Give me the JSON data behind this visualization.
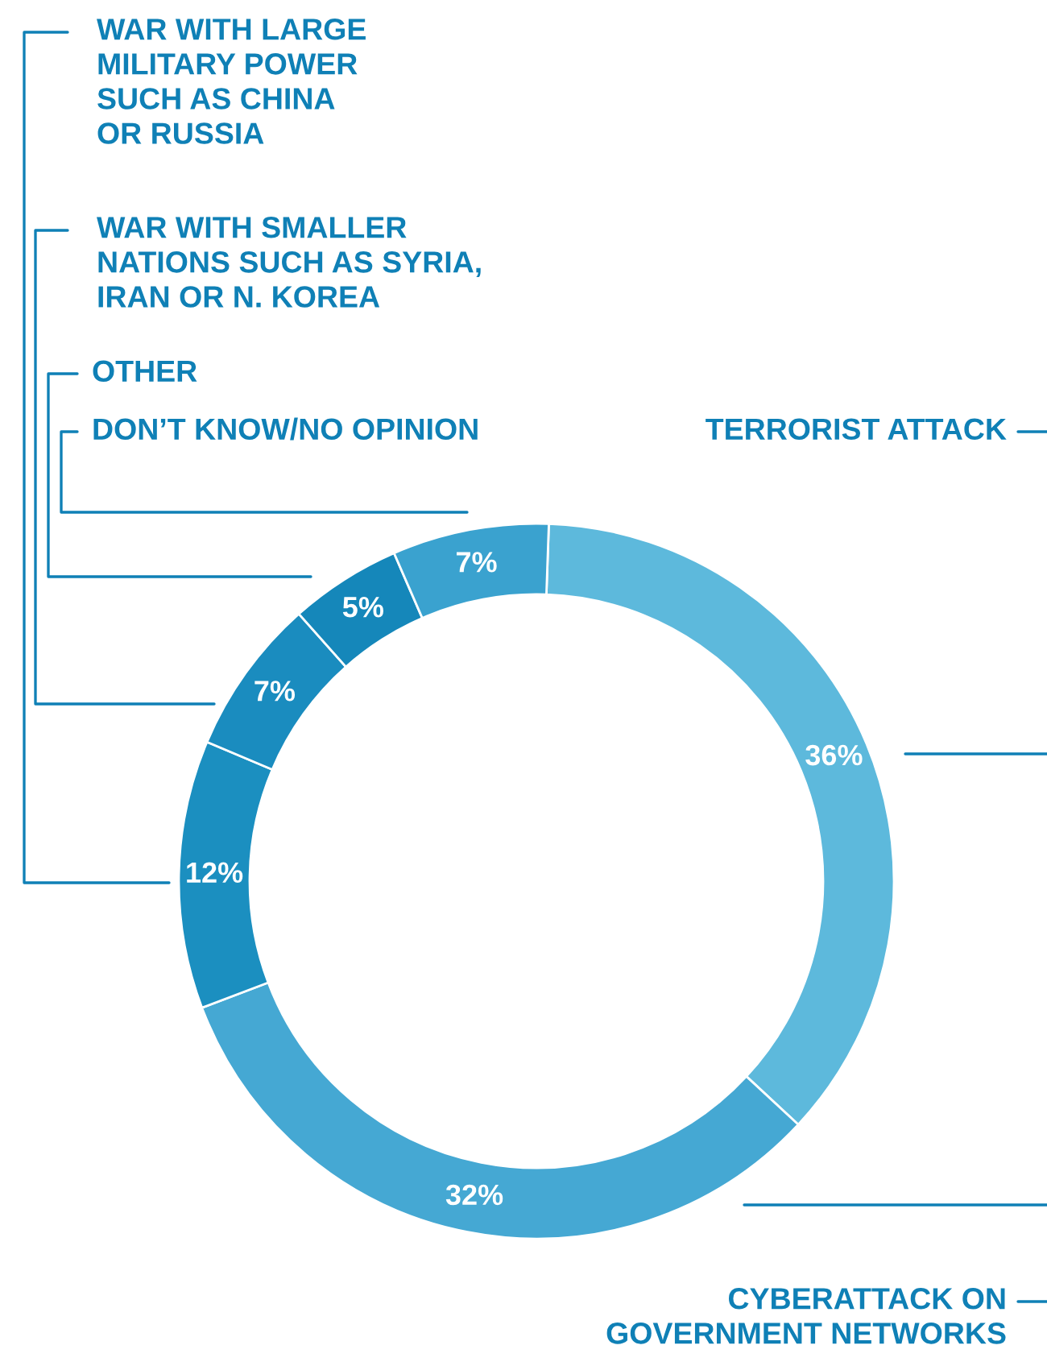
{
  "chart_data": {
    "type": "donut",
    "categories": [
      "TERRORIST ATTACK",
      "CYBERATTACK ON\nGOVERNMENT NETWORKS",
      "WAR WITH LARGE\nMILITARY POWER\nSUCH AS CHINA\nOR RUSSIA",
      "WAR WITH SMALLER\nNATIONS SUCH AS SYRIA,\nIRAN OR N. KOREA",
      "OTHER",
      "DON’T KNOW/NO OPINION"
    ],
    "values": [
      36,
      32,
      12,
      7,
      5,
      7
    ],
    "value_labels": [
      "36%",
      "32%",
      "12%",
      "7%",
      "5%",
      "7%"
    ],
    "colors": [
      "#5db9dc",
      "#45a8d3",
      "#1b8fc0",
      "#1a8cbf",
      "#1587ba",
      "#3aa2cf"
    ]
  }
}
